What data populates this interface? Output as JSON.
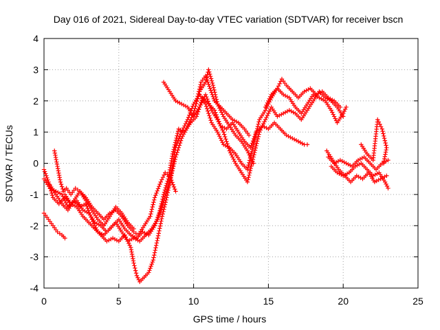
{
  "chart_data": {
    "type": "scatter",
    "title": "Day 016 of 2021, Sidereal Day-to-day VTEC variation (SDTVAR) for receiver bscn",
    "xlabel": "GPS time / hours",
    "ylabel": "SDTVAR / TECUs",
    "xlim": [
      0,
      25
    ],
    "ylim": [
      -4,
      4
    ],
    "x_ticks": [
      "0",
      "5",
      "10",
      "15",
      "20",
      "25"
    ],
    "y_ticks": [
      "-4",
      "-3",
      "-2",
      "-1",
      "0",
      "1",
      "2",
      "3",
      "4"
    ],
    "x_tick_values": [
      0,
      5,
      10,
      15,
      20,
      25
    ],
    "y_tick_values": [
      -4,
      -3,
      -2,
      -1,
      0,
      1,
      2,
      3,
      4
    ],
    "grid": true,
    "marker": "plus",
    "color": "#ff0000",
    "series": [
      {
        "points": [
          [
            0.0,
            -0.2
          ],
          [
            0.3,
            -0.6
          ],
          [
            0.6,
            -1.1
          ],
          [
            1.0,
            -1.3
          ],
          [
            1.4,
            -1.1
          ],
          [
            1.8,
            -1.3
          ],
          [
            2.2,
            -1.2
          ],
          [
            2.6,
            -1.5
          ],
          [
            3.0,
            -1.6
          ],
          [
            3.4,
            -1.9
          ],
          [
            3.8,
            -2.0
          ],
          [
            4.2,
            -2.2
          ],
          [
            4.6,
            -2.0
          ],
          [
            5.0,
            -1.8
          ],
          [
            5.4,
            -2.1
          ],
          [
            5.8,
            -2.3
          ],
          [
            6.2,
            -2.4
          ],
          [
            6.6,
            -2.2
          ],
          [
            7.0,
            -2.3
          ],
          [
            7.4,
            -2.0
          ],
          [
            7.7,
            -1.6
          ],
          [
            8.0,
            -1.0
          ],
          [
            8.3,
            -0.5
          ],
          [
            8.6,
            0.3
          ],
          [
            9.0,
            1.1
          ],
          [
            9.4,
            1.0
          ],
          [
            9.8,
            1.3
          ],
          [
            10.2,
            1.5
          ],
          [
            10.6,
            2.1
          ],
          [
            11.0,
            1.9
          ],
          [
            11.4,
            1.7
          ],
          [
            11.8,
            1.2
          ],
          [
            12.2,
            1.1
          ],
          [
            12.6,
            1.3
          ],
          [
            13.0,
            1.0
          ],
          [
            13.4,
            0.7
          ],
          [
            13.8,
            0.5
          ],
          [
            14.2,
            1.0
          ],
          [
            14.6,
            1.2
          ],
          [
            15.0,
            1.1
          ],
          [
            15.4,
            1.3
          ],
          [
            15.8,
            1.1
          ],
          [
            16.2,
            0.9
          ],
          [
            16.6,
            0.8
          ],
          [
            17.0,
            0.7
          ],
          [
            17.4,
            0.6
          ],
          [
            17.6,
            0.6
          ]
        ]
      },
      {
        "points": [
          [
            0.0,
            -0.5
          ],
          [
            0.4,
            -0.8
          ],
          [
            0.8,
            -0.9
          ],
          [
            1.2,
            -1.0
          ],
          [
            1.6,
            -1.4
          ],
          [
            2.0,
            -1.2
          ],
          [
            2.4,
            -0.9
          ],
          [
            2.8,
            -1.1
          ],
          [
            3.2,
            -1.4
          ],
          [
            3.6,
            -1.6
          ],
          [
            4.0,
            -1.8
          ],
          [
            4.4,
            -1.6
          ],
          [
            4.8,
            -1.5
          ],
          [
            5.2,
            -1.7
          ],
          [
            5.6,
            -2.0
          ],
          [
            6.0,
            -2.2
          ],
          [
            6.3,
            -2.3
          ],
          [
            6.7,
            -2.0
          ],
          [
            7.1,
            -1.7
          ],
          [
            7.4,
            -1.1
          ],
          [
            7.8,
            -0.6
          ],
          [
            8.1,
            -0.3
          ],
          [
            8.4,
            -0.4
          ],
          [
            8.8,
            -0.9
          ]
        ]
      },
      {
        "points": [
          [
            1.4,
            -1.0
          ],
          [
            1.8,
            -1.3
          ],
          [
            2.2,
            -1.4
          ],
          [
            2.6,
            -1.7
          ],
          [
            3.0,
            -1.9
          ],
          [
            3.4,
            -2.1
          ],
          [
            3.8,
            -2.3
          ],
          [
            4.2,
            -2.5
          ],
          [
            4.6,
            -2.4
          ],
          [
            5.0,
            -2.5
          ],
          [
            5.4,
            -2.3
          ],
          [
            5.8,
            -2.7
          ],
          [
            6.0,
            -3.2
          ],
          [
            6.2,
            -3.6
          ],
          [
            6.4,
            -3.8
          ],
          [
            6.6,
            -3.7
          ],
          [
            6.8,
            -3.6
          ],
          [
            7.0,
            -3.5
          ],
          [
            7.3,
            -3.1
          ],
          [
            7.6,
            -2.4
          ],
          [
            7.9,
            -1.7
          ],
          [
            8.2,
            -1.1
          ],
          [
            8.5,
            -0.4
          ],
          [
            8.8,
            0.5
          ],
          [
            9.2,
            1.0
          ],
          [
            9.6,
            1.4
          ],
          [
            10.0,
            1.9
          ],
          [
            10.4,
            2.2
          ],
          [
            10.8,
            1.9
          ],
          [
            11.2,
            1.3
          ],
          [
            11.6,
            1.0
          ],
          [
            12.0,
            0.6
          ],
          [
            12.4,
            0.5
          ],
          [
            12.8,
            0.3
          ],
          [
            13.2,
            0.0
          ],
          [
            13.6,
            -0.2
          ],
          [
            14.0,
            0.6
          ],
          [
            14.4,
            1.4
          ],
          [
            14.8,
            1.7
          ],
          [
            15.2,
            2.1
          ],
          [
            15.6,
            2.4
          ],
          [
            16.0,
            2.2
          ],
          [
            16.4,
            2.1
          ],
          [
            16.8,
            1.8
          ],
          [
            17.2,
            1.6
          ],
          [
            17.6,
            1.9
          ],
          [
            18.0,
            2.2
          ],
          [
            18.4,
            2.1
          ],
          [
            18.8,
            2.0
          ],
          [
            19.2,
            1.7
          ],
          [
            19.6,
            1.3
          ],
          [
            20.0,
            1.6
          ],
          [
            20.2,
            1.8
          ]
        ]
      },
      {
        "points": [
          [
            0.4,
            -0.7
          ],
          [
            0.8,
            -1.0
          ],
          [
            1.2,
            -1.3
          ],
          [
            1.6,
            -1.5
          ],
          [
            2.0,
            -1.2
          ],
          [
            2.4,
            -1.4
          ],
          [
            2.8,
            -1.3
          ],
          [
            3.2,
            -1.8
          ],
          [
            3.6,
            -2.2
          ],
          [
            4.0,
            -2.3
          ],
          [
            4.4,
            -2.1
          ],
          [
            4.8,
            -1.9
          ],
          [
            5.2,
            -2.2
          ],
          [
            5.6,
            -2.5
          ],
          [
            6.0,
            -2.4
          ],
          [
            6.4,
            -2.5
          ],
          [
            6.8,
            -2.3
          ],
          [
            7.2,
            -2.1
          ],
          [
            7.6,
            -1.8
          ],
          [
            8.0,
            -1.2
          ],
          [
            8.4,
            -0.6
          ],
          [
            8.8,
            0.2
          ],
          [
            9.2,
            0.8
          ],
          [
            9.6,
            1.2
          ],
          [
            10.0,
            1.6
          ],
          [
            10.4,
            2.3
          ],
          [
            10.8,
            2.6
          ],
          [
            11.0,
            3.0
          ],
          [
            11.3,
            2.5
          ],
          [
            11.6,
            1.9
          ],
          [
            12.0,
            1.5
          ],
          [
            12.4,
            1.2
          ],
          [
            12.8,
            0.9
          ],
          [
            13.2,
            0.7
          ],
          [
            13.6,
            0.4
          ],
          [
            14.0,
            0.0
          ]
        ]
      },
      {
        "points": [
          [
            8.0,
            2.6
          ],
          [
            8.4,
            2.3
          ],
          [
            8.8,
            2.0
          ],
          [
            9.2,
            1.9
          ],
          [
            9.6,
            1.8
          ],
          [
            10.0,
            1.5
          ],
          [
            10.4,
            1.8
          ],
          [
            10.8,
            2.2
          ],
          [
            11.2,
            1.7
          ],
          [
            11.6,
            1.4
          ],
          [
            12.0,
            1.0
          ],
          [
            12.4,
            0.4
          ],
          [
            12.8,
            0.0
          ],
          [
            13.2,
            -0.3
          ],
          [
            13.6,
            -0.6
          ],
          [
            14.0,
            0.2
          ],
          [
            14.4,
            1.0
          ],
          [
            14.8,
            1.4
          ],
          [
            15.2,
            1.8
          ],
          [
            15.6,
            1.5
          ],
          [
            16.0,
            1.6
          ],
          [
            16.4,
            1.7
          ],
          [
            16.8,
            1.6
          ],
          [
            17.2,
            1.4
          ],
          [
            17.6,
            1.7
          ],
          [
            18.0,
            2.0
          ],
          [
            18.4,
            2.3
          ],
          [
            18.8,
            2.1
          ],
          [
            19.2,
            2.0
          ],
          [
            19.6,
            1.8
          ],
          [
            20.0,
            1.5
          ]
        ]
      },
      {
        "points": [
          [
            0.7,
            0.4
          ],
          [
            0.9,
            -0.1
          ],
          [
            1.1,
            -0.6
          ],
          [
            1.3,
            -0.9
          ],
          [
            1.5,
            -0.8
          ],
          [
            1.8,
            -1.0
          ],
          [
            2.1,
            -0.8
          ],
          [
            2.4,
            -0.9
          ],
          [
            2.8,
            -1.2
          ],
          [
            3.2,
            -1.5
          ],
          [
            3.6,
            -1.8
          ],
          [
            4.0,
            -2.0
          ],
          [
            4.4,
            -1.7
          ],
          [
            4.8,
            -1.4
          ],
          [
            5.2,
            -1.6
          ],
          [
            5.6,
            -1.9
          ],
          [
            6.0,
            -2.1
          ]
        ]
      },
      {
        "points": [
          [
            0.0,
            -1.6
          ],
          [
            0.3,
            -1.8
          ],
          [
            0.6,
            -2.0
          ],
          [
            0.9,
            -2.2
          ],
          [
            1.2,
            -2.3
          ],
          [
            1.4,
            -2.4
          ]
        ]
      },
      {
        "points": [
          [
            10.2,
            2.0
          ],
          [
            10.5,
            2.6
          ],
          [
            10.8,
            2.8
          ],
          [
            11.1,
            2.4
          ],
          [
            11.4,
            2.0
          ],
          [
            11.8,
            1.8
          ],
          [
            12.2,
            1.6
          ],
          [
            12.6,
            1.4
          ],
          [
            13.0,
            1.3
          ],
          [
            13.4,
            1.1
          ],
          [
            13.7,
            0.9
          ]
        ]
      },
      {
        "points": [
          [
            14.8,
            1.8
          ],
          [
            15.2,
            2.2
          ],
          [
            15.6,
            2.4
          ],
          [
            15.9,
            2.7
          ],
          [
            16.2,
            2.5
          ],
          [
            16.6,
            2.3
          ],
          [
            17.0,
            2.1
          ],
          [
            17.4,
            2.3
          ],
          [
            17.8,
            2.4
          ],
          [
            18.2,
            2.2
          ],
          [
            18.6,
            2.3
          ],
          [
            19.0,
            2.1
          ],
          [
            19.4,
            2.0
          ],
          [
            19.8,
            1.8
          ]
        ]
      },
      {
        "points": [
          [
            18.9,
            0.4
          ],
          [
            19.3,
            0.1
          ],
          [
            19.7,
            -0.2
          ],
          [
            20.1,
            -0.4
          ],
          [
            20.5,
            -0.6
          ],
          [
            20.9,
            -0.4
          ],
          [
            21.3,
            -0.5
          ],
          [
            21.7,
            -0.3
          ],
          [
            22.1,
            -0.6
          ],
          [
            22.5,
            -0.5
          ],
          [
            22.9,
            -0.4
          ]
        ]
      },
      {
        "points": [
          [
            19.0,
            0.2
          ],
          [
            19.4,
            0.0
          ],
          [
            19.8,
            0.1
          ],
          [
            20.2,
            0.0
          ],
          [
            20.6,
            -0.1
          ],
          [
            21.0,
            0.1
          ],
          [
            21.4,
            0.2
          ],
          [
            21.8,
            0.0
          ],
          [
            22.2,
            -0.2
          ],
          [
            22.6,
            0.0
          ],
          [
            23.0,
            0.1
          ]
        ]
      },
      {
        "points": [
          [
            19.2,
            -0.1
          ],
          [
            19.6,
            -0.3
          ],
          [
            20.0,
            -0.4
          ],
          [
            20.4,
            -0.3
          ],
          [
            20.8,
            -0.1
          ],
          [
            21.2,
            0.0
          ],
          [
            21.6,
            -0.2
          ],
          [
            22.0,
            -0.4
          ],
          [
            22.4,
            -0.3
          ],
          [
            22.8,
            -0.6
          ],
          [
            23.0,
            -0.8
          ]
        ]
      },
      {
        "points": [
          [
            21.2,
            0.6
          ],
          [
            21.6,
            0.3
          ],
          [
            22.0,
            0.1
          ],
          [
            22.3,
            1.4
          ],
          [
            22.6,
            1.1
          ],
          [
            22.9,
            0.5
          ],
          [
            22.7,
            0.0
          ]
        ]
      }
    ]
  }
}
